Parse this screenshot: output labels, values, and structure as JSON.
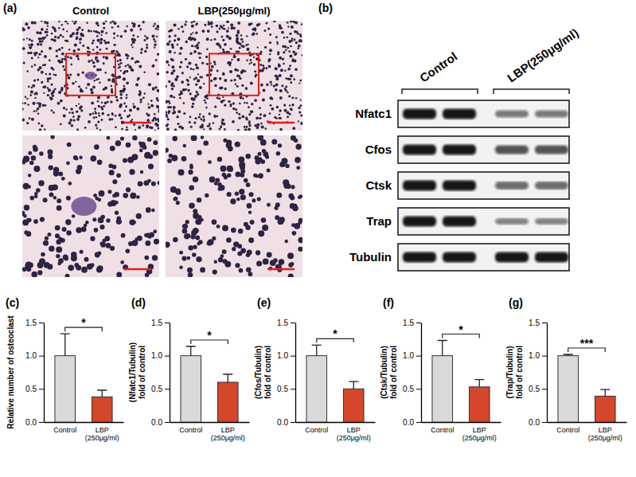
{
  "micrographs": {
    "letter": "(a)",
    "columns": [
      "Control",
      "LBP(250μg/ml)"
    ]
  },
  "blot": {
    "letter": "(b)",
    "columns": [
      "Control",
      "LBP(250μg/ml)"
    ],
    "rows": [
      "Nfatc1",
      "Cfos",
      "Ctsk",
      "Trap",
      "Tubulin"
    ]
  },
  "chart_data": [
    {
      "type": "bar",
      "panel": "(c)",
      "y_label": [
        "Relative number of osteoclast"
      ],
      "categories": [
        "Control",
        "LBP(250μg/ml)"
      ],
      "values": [
        1.0,
        0.38
      ],
      "errors": [
        0.33,
        0.1
      ],
      "colors": [
        "#d9d9d9",
        "#d4472b"
      ],
      "ylim": [
        0,
        1.5
      ],
      "yticks": [
        {
          "value": 0,
          "label": "0.0"
        },
        0.5,
        {
          "value": 1,
          "label": "1.0"
        },
        1.5
      ],
      "significance": "*"
    },
    {
      "type": "bar",
      "panel": "(d)",
      "y_label": [
        "(Nfatc1/Tubulin)",
        "fold of control"
      ],
      "categories": [
        "Control",
        "LBP(250μg/ml)"
      ],
      "values": [
        1.0,
        0.6
      ],
      "errors": [
        0.14,
        0.12
      ],
      "colors": [
        "#d9d9d9",
        "#d4472b"
      ],
      "ylim": [
        0,
        1.5
      ],
      "yticks": [
        {
          "value": 0,
          "label": "0.0"
        },
        0.5,
        {
          "value": 1,
          "label": "1.0"
        },
        1.5
      ],
      "significance": "*"
    },
    {
      "type": "bar",
      "panel": "(e)",
      "y_label": [
        "(Cfos/Tubulin)",
        "fold of control"
      ],
      "categories": [
        "Control",
        "LBP(250μg/ml)"
      ],
      "values": [
        1.0,
        0.5
      ],
      "errors": [
        0.16,
        0.11
      ],
      "colors": [
        "#d9d9d9",
        "#d4472b"
      ],
      "ylim": [
        0,
        1.5
      ],
      "yticks": [
        {
          "value": 0,
          "label": "0.0"
        },
        0.5,
        {
          "value": 1,
          "label": "1.0"
        },
        1.5
      ],
      "significance": "*"
    },
    {
      "type": "bar",
      "panel": "(f)",
      "y_label": [
        "(Ctsk/Tubulin)",
        "fold of control"
      ],
      "categories": [
        "Control",
        "LBP(250μg/ml)"
      ],
      "values": [
        1.0,
        0.53
      ],
      "errors": [
        0.23,
        0.11
      ],
      "colors": [
        "#d9d9d9",
        "#d4472b"
      ],
      "ylim": [
        0,
        1.5
      ],
      "yticks": [
        {
          "value": 0,
          "label": "0.0"
        },
        0.5,
        {
          "value": 1,
          "label": "1.0"
        },
        1.5
      ],
      "significance": "*"
    },
    {
      "type": "bar",
      "panel": "(g)",
      "y_label": [
        "(Trap/Tubulin)",
        "fold of control"
      ],
      "categories": [
        "Control",
        "LBP(250μg/ml)"
      ],
      "values": [
        1.0,
        0.39
      ],
      "errors": [
        0.02,
        0.1
      ],
      "colors": [
        "#d9d9d9",
        "#d4472b"
      ],
      "ylim": [
        0,
        1.5
      ],
      "yticks": [
        {
          "value": 0,
          "label": "0.0"
        },
        0.5,
        {
          "value": 1,
          "label": "1.0"
        },
        1.5
      ],
      "significance": "***"
    }
  ]
}
